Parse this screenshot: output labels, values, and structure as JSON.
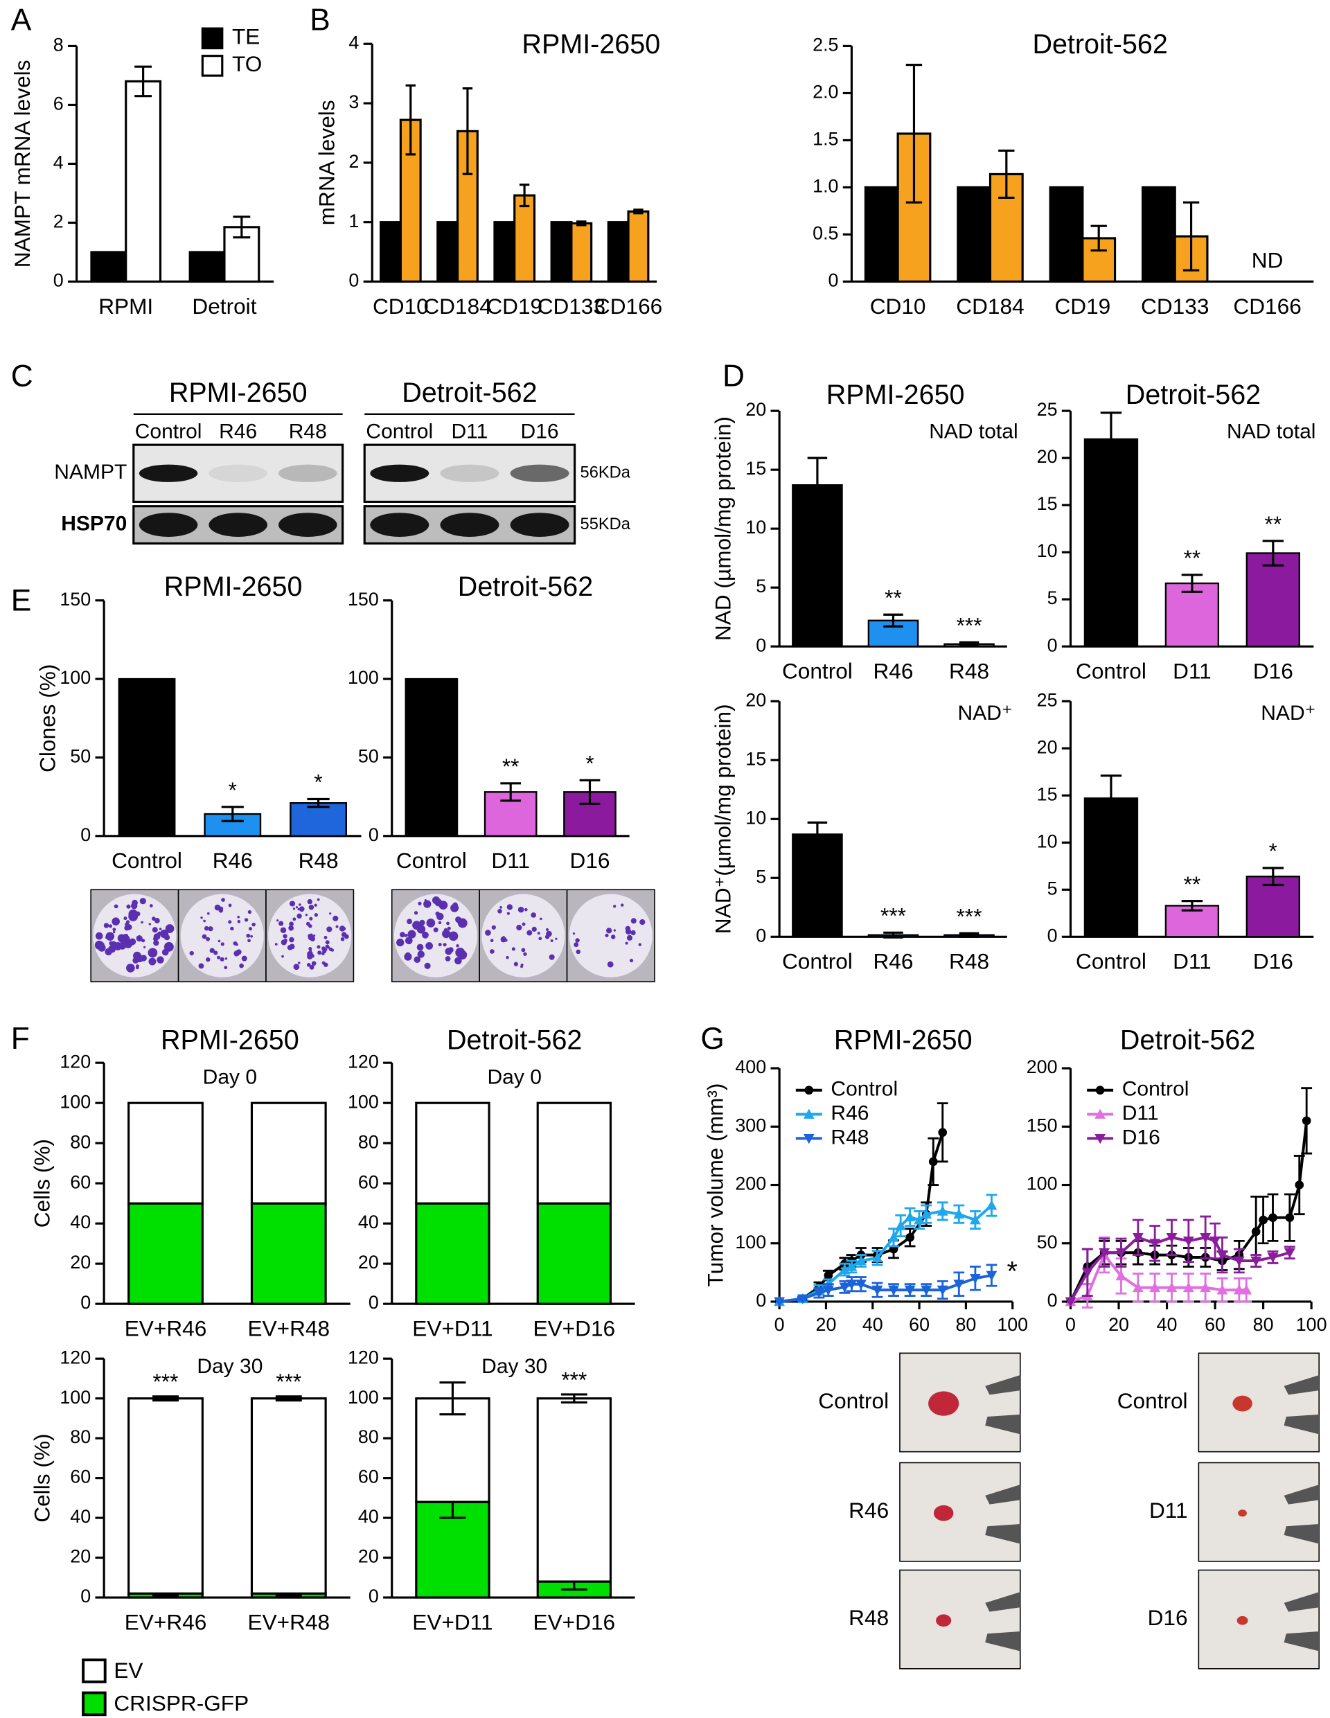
{
  "letters": [
    "A",
    "B",
    "C",
    "D",
    "E",
    "F",
    "G"
  ],
  "blots": {
    "groups": [
      {
        "title": "RPMI-2650",
        "lanes": [
          "Control",
          "R46",
          "R48"
        ]
      },
      {
        "title": "Detroit-562",
        "lanes": [
          "Control",
          "D11",
          "D16"
        ]
      }
    ],
    "rows": [
      {
        "name": "NAMPT",
        "size": "56KDa"
      },
      {
        "name": "HSP70",
        "size": "55KDa"
      }
    ]
  },
  "tumor_photos": {
    "left": [
      "Control",
      "R46",
      "R48"
    ],
    "right": [
      "Control",
      "D11",
      "D16"
    ]
  },
  "chart_data": [
    {
      "type": "bar",
      "ylabel": "NAMPT mRNA levels",
      "categories": [
        "RPMI",
        "Detroit"
      ],
      "series": [
        {
          "name": "TE",
          "color": "#000000",
          "values": [
            1,
            1
          ]
        },
        {
          "name": "TO",
          "color": "#ffffff",
          "values": [
            6.8,
            1.85
          ],
          "errors": [
            0.5,
            0.35
          ]
        }
      ],
      "ylim": [
        0,
        8
      ],
      "yticks": [
        0,
        2,
        4,
        6,
        8
      ],
      "legend": "upper right"
    },
    {
      "type": "bar",
      "title": "RPMI-2650",
      "ylabel": "mRNA levels",
      "categories": [
        "CD10",
        "CD184",
        "CD19",
        "CD133",
        "CD166"
      ],
      "series": [
        {
          "color": "#000000",
          "values": [
            1,
            1,
            1,
            1,
            1
          ]
        },
        {
          "color": "#f7a21e",
          "values": [
            2.72,
            2.53,
            1.45,
            0.98,
            1.18
          ],
          "errors": [
            0.58,
            0.72,
            0.18,
            0.03,
            0.03
          ]
        }
      ],
      "ylim": [
        0,
        4
      ],
      "yticks": [
        0,
        1,
        2,
        3,
        4
      ]
    },
    {
      "type": "bar",
      "title": "Detroit-562",
      "categories": [
        "CD10",
        "CD184",
        "CD19",
        "CD133",
        "CD166"
      ],
      "series": [
        {
          "color": "#000000",
          "values": [
            1,
            1,
            1,
            1,
            null
          ]
        },
        {
          "color": "#f7a21e",
          "values": [
            1.57,
            1.14,
            0.46,
            0.48,
            null
          ],
          "errors": [
            0.73,
            0.25,
            0.13,
            0.36,
            null
          ]
        }
      ],
      "annotations": [
        null,
        null,
        null,
        null,
        "ND"
      ],
      "ylim": [
        0,
        2.5
      ],
      "yticks": [
        0,
        0.5,
        {
          "value": 1,
          "label": "1.0"
        },
        1.5,
        {
          "value": 2,
          "label": "2.0"
        },
        2.5
      ]
    },
    {
      "type": "bar",
      "title": "RPMI-2650",
      "subtitle": "NAD total",
      "ylabel": "NAD (µmol/mg protein)",
      "categories": [
        "Control",
        "R46",
        "R48"
      ],
      "values": [
        13.7,
        2.2,
        0.2
      ],
      "errors": [
        2.3,
        0.5,
        0.15
      ],
      "colors": [
        "#000000",
        "#1e90f0",
        "#1f66dc"
      ],
      "significance": [
        null,
        "**",
        "***"
      ],
      "ylim": [
        0,
        20
      ],
      "yticks": [
        0,
        5,
        10,
        15,
        20
      ]
    },
    {
      "type": "bar",
      "title": "Detroit-562",
      "subtitle": "NAD total",
      "categories": [
        "Control",
        "D11",
        "D16"
      ],
      "values": [
        22,
        6.7,
        9.9
      ],
      "errors": [
        2.8,
        0.9,
        1.3
      ],
      "colors": [
        "#000000",
        "#dd66dd",
        "#8b1a9e"
      ],
      "significance": [
        null,
        "**",
        "**"
      ],
      "ylim": [
        0,
        25
      ],
      "yticks": [
        0,
        5,
        10,
        15,
        20,
        25
      ]
    },
    {
      "type": "bar",
      "subtitle": "NAD⁺",
      "ylabel": "NAD⁺(µmol/mg protein)",
      "categories": [
        "Control",
        "R46",
        "R48"
      ],
      "values": [
        8.7,
        0.15,
        0.15
      ],
      "errors": [
        1,
        0.2,
        0.15
      ],
      "colors": [
        "#000000",
        "#1e90f0",
        "#1f66dc"
      ],
      "significance": [
        null,
        "***",
        "***"
      ],
      "ylim": [
        0,
        20
      ],
      "yticks": [
        0,
        5,
        10,
        15,
        20
      ]
    },
    {
      "type": "bar",
      "subtitle": "NAD⁺",
      "categories": [
        "Control",
        "D11",
        "D16"
      ],
      "values": [
        14.7,
        3.3,
        6.4
      ],
      "errors": [
        2.4,
        0.5,
        0.9
      ],
      "colors": [
        "#000000",
        "#dd66dd",
        "#8b1a9e"
      ],
      "significance": [
        null,
        "**",
        "*"
      ],
      "ylim": [
        0,
        25
      ],
      "yticks": [
        0,
        5,
        10,
        15,
        20,
        25
      ]
    },
    {
      "type": "bar",
      "title": "RPMI-2650",
      "ylabel": "Clones (%)",
      "categories": [
        "Control",
        "R46",
        "R48"
      ],
      "values": [
        100,
        14,
        21
      ],
      "errors": [
        null,
        4.5,
        2.5
      ],
      "colors": [
        "#000000",
        "#1e90f0",
        "#1f66dc"
      ],
      "significance": [
        null,
        "*",
        "*"
      ],
      "ylim": [
        0,
        150
      ],
      "yticks": [
        0,
        50,
        100,
        150
      ]
    },
    {
      "type": "bar",
      "title": "Detroit-562",
      "categories": [
        "Control",
        "D11",
        "D16"
      ],
      "values": [
        100,
        28,
        28
      ],
      "errors": [
        null,
        5.5,
        7.5
      ],
      "colors": [
        "#000000",
        "#dd66dd",
        "#8b1a9e"
      ],
      "significance": [
        null,
        "**",
        "*"
      ],
      "ylim": [
        0,
        150
      ],
      "yticks": [
        0,
        50,
        100,
        150
      ]
    },
    {
      "type": "stacked_bar",
      "title": "RPMI-2650",
      "subtitle": "Day 0",
      "ylabel": "Cells (%)",
      "categories": [
        "EV+R46",
        "EV+R48"
      ],
      "series": [
        {
          "name": "CRISPR-GFP",
          "color": "#00e000",
          "values": [
            50,
            50
          ]
        },
        {
          "name": "EV",
          "color": "#ffffff",
          "values": [
            50,
            50
          ]
        }
      ],
      "ylim": [
        0,
        120
      ],
      "yticks": [
        0,
        20,
        40,
        60,
        80,
        100,
        120
      ]
    },
    {
      "type": "stacked_bar",
      "title": "Detroit-562",
      "subtitle": "Day 0",
      "categories": [
        "EV+D11",
        "EV+D16"
      ],
      "series": [
        {
          "name": "CRISPR-GFP",
          "color": "#00e000",
          "values": [
            50,
            50
          ]
        },
        {
          "name": "EV",
          "color": "#ffffff",
          "values": [
            50,
            50
          ]
        }
      ],
      "ylim": [
        0,
        120
      ],
      "yticks": [
        0,
        20,
        40,
        60,
        80,
        100,
        120
      ]
    },
    {
      "type": "stacked_bar",
      "subtitle": "Day 30",
      "ylabel": "Cells (%)",
      "categories": [
        "EV+R46",
        "EV+R48"
      ],
      "series": [
        {
          "name": "CRISPR-GFP",
          "color": "#00e000",
          "values": [
            2,
            2
          ],
          "errors": [
            1,
            1
          ],
          "significance": [
            "***",
            "***"
          ]
        },
        {
          "name": "EV",
          "color": "#ffffff",
          "values": [
            98,
            98
          ],
          "errors": [
            1,
            1
          ],
          "significance": [
            "***",
            "***"
          ]
        }
      ],
      "ylim": [
        0,
        120
      ],
      "yticks": [
        0,
        20,
        40,
        60,
        80,
        100,
        120
      ],
      "legend": "below"
    },
    {
      "type": "stacked_bar",
      "subtitle": "Day 30",
      "categories": [
        "EV+D11",
        "EV+D16"
      ],
      "series": [
        {
          "name": "CRISPR-GFP",
          "color": "#00e000",
          "values": [
            48,
            8
          ],
          "errors": [
            8,
            4
          ],
          "significance": [
            null,
            "***"
          ]
        },
        {
          "name": "EV",
          "color": "#ffffff",
          "values": [
            52,
            92
          ],
          "errors": [
            8,
            2
          ],
          "significance": [
            null,
            "***"
          ]
        }
      ],
      "ylim": [
        0,
        120
      ],
      "yticks": [
        0,
        20,
        40,
        60,
        80,
        100,
        120
      ]
    },
    {
      "type": "line",
      "title": "RPMI-2650",
      "ylabel": "Tumor volume (mm³)",
      "xlim": [
        0,
        100
      ],
      "xticks": [
        0,
        20,
        40,
        60,
        80,
        100
      ],
      "ylim": [
        0,
        400
      ],
      "yticks": [
        0,
        100,
        200,
        300,
        400
      ],
      "legend": "upper left",
      "series": [
        {
          "name": "Control",
          "color": "#000000",
          "marker": "o",
          "x": [
            0,
            10,
            17,
            21,
            28,
            31,
            35,
            42,
            49,
            56,
            63,
            66,
            70
          ],
          "values": [
            0,
            5,
            25,
            45,
            65,
            70,
            80,
            80,
            90,
            110,
            150,
            240,
            290
          ],
          "errors": [
            0,
            3,
            8,
            8,
            10,
            10,
            12,
            12,
            15,
            15,
            20,
            40,
            50
          ]
        },
        {
          "name": "R46",
          "color": "#1ea7ec",
          "marker": "^",
          "x": [
            0,
            10,
            17,
            21,
            28,
            31,
            35,
            42,
            49,
            52,
            56,
            60,
            63,
            70,
            77,
            84,
            91
          ],
          "values": [
            0,
            5,
            20,
            30,
            55,
            60,
            70,
            75,
            110,
            130,
            145,
            140,
            150,
            155,
            150,
            140,
            165
          ],
          "errors": [
            0,
            3,
            8,
            8,
            10,
            10,
            10,
            12,
            15,
            18,
            15,
            15,
            15,
            15,
            15,
            15,
            18
          ]
        },
        {
          "name": "R48",
          "color": "#1b63d9",
          "marker": "v",
          "x": [
            0,
            10,
            17,
            21,
            28,
            31,
            35,
            42,
            49,
            56,
            63,
            70,
            77,
            84,
            91
          ],
          "values": [
            0,
            5,
            15,
            20,
            25,
            30,
            30,
            20,
            20,
            20,
            20,
            20,
            30,
            40,
            45
          ],
          "errors": [
            0,
            3,
            8,
            10,
            10,
            12,
            12,
            12,
            10,
            10,
            10,
            15,
            20,
            20,
            18
          ],
          "annotation": "*"
        }
      ]
    },
    {
      "type": "line",
      "title": "Detroit-562",
      "xlim": [
        0,
        100
      ],
      "xticks": [
        0,
        20,
        40,
        60,
        80,
        100
      ],
      "ylim": [
        0,
        200
      ],
      "yticks": [
        0,
        50,
        100,
        150,
        200
      ],
      "legend": "upper left",
      "series": [
        {
          "name": "Control",
          "color": "#000000",
          "marker": "o",
          "x": [
            0,
            7,
            14,
            21,
            28,
            35,
            42,
            49,
            56,
            63,
            70,
            77,
            80,
            84,
            91,
            95,
            98
          ],
          "values": [
            0,
            30,
            42,
            42,
            42,
            40,
            40,
            38,
            38,
            35,
            40,
            60,
            70,
            72,
            72,
            100,
            155
          ],
          "errors": [
            0,
            15,
            10,
            10,
            10,
            8,
            8,
            8,
            8,
            8,
            12,
            30,
            20,
            20,
            20,
            25,
            28
          ]
        },
        {
          "name": "D11",
          "color": "#e070e0",
          "marker": "^",
          "x": [
            0,
            7,
            14,
            21,
            28,
            35,
            42,
            49,
            56,
            63,
            70,
            73
          ],
          "values": [
            0,
            5,
            40,
            22,
            12,
            12,
            12,
            12,
            12,
            10,
            10,
            10
          ],
          "errors": [
            0,
            10,
            15,
            15,
            12,
            12,
            12,
            12,
            12,
            10,
            10,
            10
          ]
        },
        {
          "name": "D16",
          "color": "#8a1d9c",
          "marker": "v",
          "x": [
            0,
            7,
            14,
            21,
            28,
            35,
            42,
            49,
            56,
            60,
            63,
            70,
            77,
            84,
            91
          ],
          "values": [
            0,
            25,
            42,
            42,
            55,
            50,
            55,
            52,
            55,
            52,
            40,
            35,
            35,
            38,
            42
          ],
          "errors": [
            0,
            20,
            12,
            12,
            15,
            15,
            15,
            18,
            18,
            15,
            15,
            10,
            5,
            5,
            5
          ]
        }
      ]
    }
  ]
}
